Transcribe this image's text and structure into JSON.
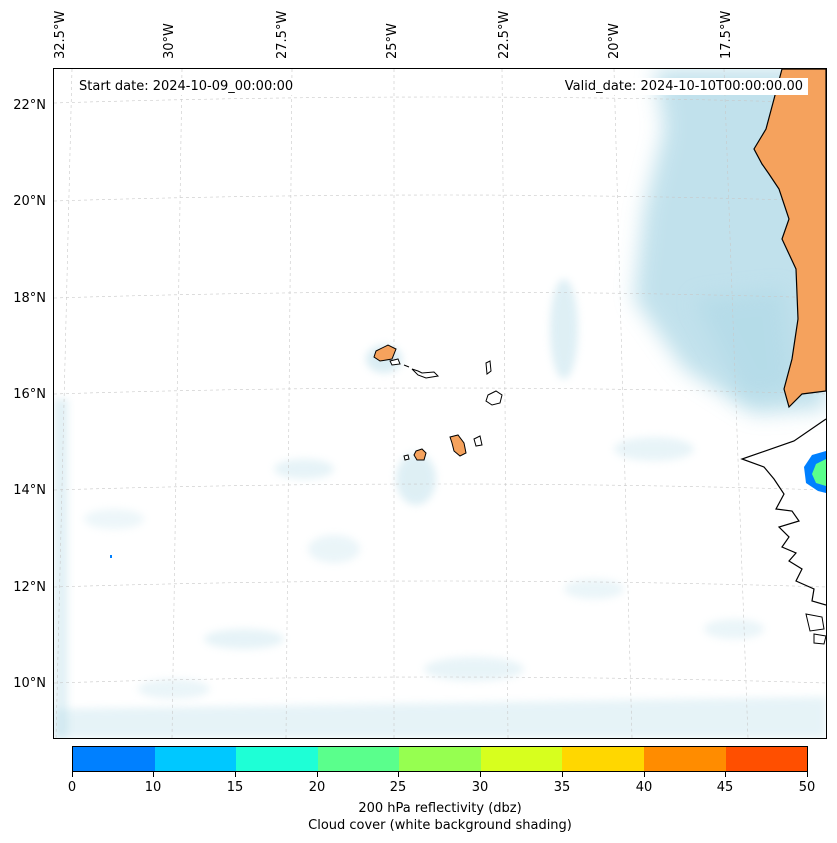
{
  "header": {
    "start_label": "Start date: 2024-10-09_00:00:00",
    "valid_label": "Valid_date: 2024-10-10T00:00:00.00"
  },
  "longitude_ticks": [
    "32.5°W",
    "30°W",
    "27.5°W",
    "25°W",
    "22.5°W",
    "20°W",
    "17.5°W"
  ],
  "latitude_ticks": [
    "22°N",
    "20°N",
    "18°N",
    "16°N",
    "14°N",
    "12°N",
    "10°N"
  ],
  "colorbar": {
    "ticks": [
      "0",
      "10",
      "15",
      "20",
      "25",
      "30",
      "35",
      "40",
      "45",
      "50"
    ],
    "colors": [
      "#0080ff",
      "#00c8ff",
      "#1effd6",
      "#5aff8c",
      "#96ff50",
      "#d7ff1e",
      "#ffd700",
      "#ff8c00",
      "#ff4f00"
    ],
    "title_line1": "200 hPa reflectivity (dbz)",
    "title_line2": "Cloud cover (white background shading)"
  },
  "map_colors": {
    "land": "#f5a25d",
    "cloud": "#add8e6",
    "coastline": "#000000",
    "grid": "#c8c8c8"
  }
}
